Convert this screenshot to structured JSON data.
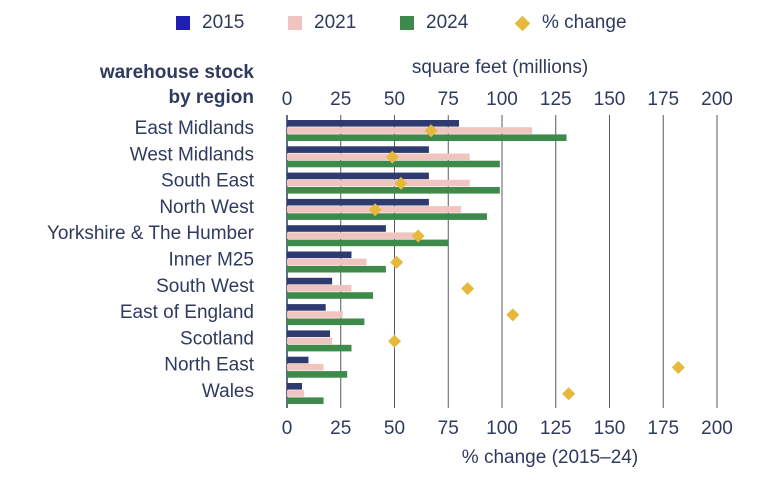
{
  "legend": {
    "items": [
      {
        "label": "2015",
        "color": "#1f1fb0",
        "shape": "square"
      },
      {
        "label": "2021",
        "color": "#f0c4bf",
        "shape": "square"
      },
      {
        "label": "2024",
        "color": "#3d8a4a",
        "shape": "square"
      },
      {
        "label": "% change",
        "color": "#e6b83c",
        "shape": "diamond"
      }
    ]
  },
  "row_title": {
    "line1": "warehouse stock",
    "line2": "by region"
  },
  "chart_data": {
    "type": "bar",
    "orientation": "horizontal",
    "categories": [
      "East Midlands",
      "West Midlands",
      "South East",
      "North West",
      "Yorkshire & The Humber",
      "Inner M25",
      "South West",
      "East of England",
      "Scotland",
      "North East",
      "Wales"
    ],
    "series": [
      {
        "name": "2015",
        "axis": "top",
        "color": "#2f3b6e",
        "values": [
          80,
          66,
          66,
          66,
          46,
          30,
          21,
          18,
          20,
          10,
          7
        ]
      },
      {
        "name": "2021",
        "axis": "top",
        "color": "#f0c4bf",
        "values": [
          114,
          85,
          85,
          81,
          61,
          37,
          30,
          26,
          21,
          17,
          8
        ]
      },
      {
        "name": "2024",
        "axis": "top",
        "color": "#3d8a4a",
        "values": [
          130,
          99,
          99,
          93,
          75,
          46,
          40,
          36,
          30,
          28,
          17
        ]
      },
      {
        "name": "% change",
        "axis": "bottom",
        "type": "scatter",
        "marker": "diamond",
        "color": "#e6b83c",
        "values": [
          67,
          49,
          53,
          41,
          61,
          51,
          84,
          105,
          50,
          182,
          131
        ]
      }
    ],
    "top_axis": {
      "label": "square feet (millions)",
      "ticks": [
        "0",
        "25",
        "50",
        "75",
        "100",
        "125",
        "150",
        "175",
        "200"
      ],
      "range": [
        0,
        200
      ]
    },
    "bottom_axis": {
      "label": "% change (2015–24)",
      "ticks": [
        "0",
        "25",
        "50",
        "75",
        "100",
        "125",
        "150",
        "175",
        "200"
      ],
      "range": [
        0,
        200
      ]
    },
    "grid": true
  }
}
